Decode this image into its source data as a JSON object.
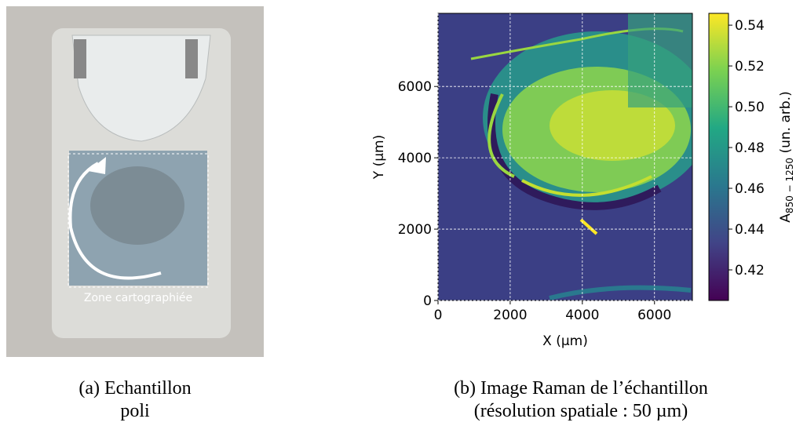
{
  "panel_a": {
    "annotation": "Zone cartographiée",
    "caption_lines": [
      "(a) Echantillon",
      "poli"
    ]
  },
  "chart_data": {
    "type": "heatmap",
    "x_label": "X (µm)",
    "y_label": "Y (µm)",
    "colorbar_label": {
      "base": "A",
      "subscript": "850 − 1250",
      "suffix": " (un. arb.)"
    },
    "xlim": [
      0,
      7050
    ],
    "xticks": [
      0,
      2000,
      4000,
      6000
    ],
    "ylim": [
      0,
      8050
    ],
    "yticks": [
      0,
      2000,
      4000,
      6000
    ],
    "clim": [
      0.405,
      0.5458
    ],
    "cticks": [
      0.42,
      0.44,
      0.46,
      0.48,
      {
        "value": 0.5,
        "label": "0.50"
      },
      0.52,
      0.54
    ],
    "colormap": "viridis",
    "grid": true,
    "caption_lines": [
      "(b) Image Raman de l’échantillon",
      "(résolution spatiale : 50 µm)"
    ]
  }
}
